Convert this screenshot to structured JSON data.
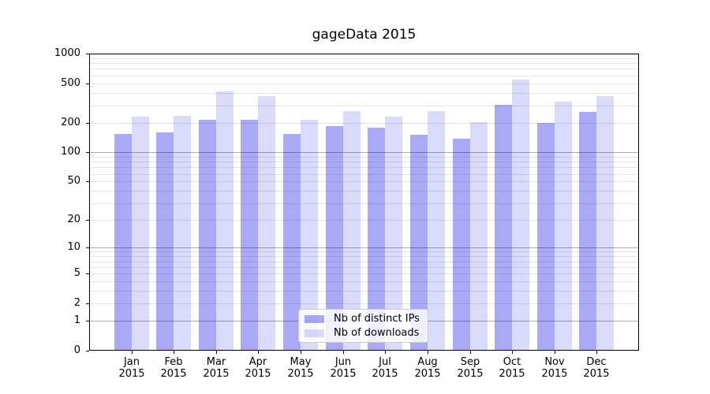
{
  "colors": {
    "bar_distinct_ips": "rgba(8,8,230,0.35)",
    "bar_downloads": "rgba(8,8,230,0.15)",
    "bar_distinct_ips_flat": "#a9a9f2",
    "bar_downloads_flat": "#dcdcf9",
    "grid_major": "#ababab",
    "grid_minor": "#e5e5e5",
    "spine": "#000000",
    "legend_border": "#cccccc",
    "text": "#000000",
    "background": "#ffffff"
  },
  "chart_data": {
    "type": "bar",
    "title": "gageData 2015",
    "categories": [
      "Jan 2015",
      "Feb 2015",
      "Mar 2015",
      "Apr 2015",
      "May 2015",
      "Jun 2015",
      "Jul 2015",
      "Aug 2015",
      "Sep 2015",
      "Oct 2015",
      "Nov 2015",
      "Dec 2015"
    ],
    "series": [
      {
        "name": "Nb of distinct IPs",
        "values": [
          154,
          159,
          215,
          214,
          153,
          184,
          179,
          152,
          137,
          305,
          197,
          258
        ]
      },
      {
        "name": "Nb of downloads",
        "values": [
          230,
          236,
          417,
          373,
          212,
          264,
          231,
          262,
          201,
          546,
          324,
          369
        ]
      }
    ],
    "xlabel": "",
    "ylabel": "",
    "yscale": "symlog (position proportional to ln(1+value))",
    "ylim": [
      0,
      1000
    ],
    "y_ticks": [
      0,
      1,
      2,
      5,
      10,
      20,
      50,
      100,
      200,
      500,
      1000
    ],
    "y_major_gridlines": [
      1,
      10,
      100
    ],
    "y_minor_gridlines": [
      2,
      3,
      4,
      5,
      6,
      7,
      8,
      9,
      20,
      30,
      40,
      50,
      60,
      70,
      80,
      90,
      200,
      300,
      400,
      500,
      600,
      700,
      800,
      900
    ],
    "grid": "horizontal only, major and minor",
    "legend_position": "lower center inside plot"
  }
}
